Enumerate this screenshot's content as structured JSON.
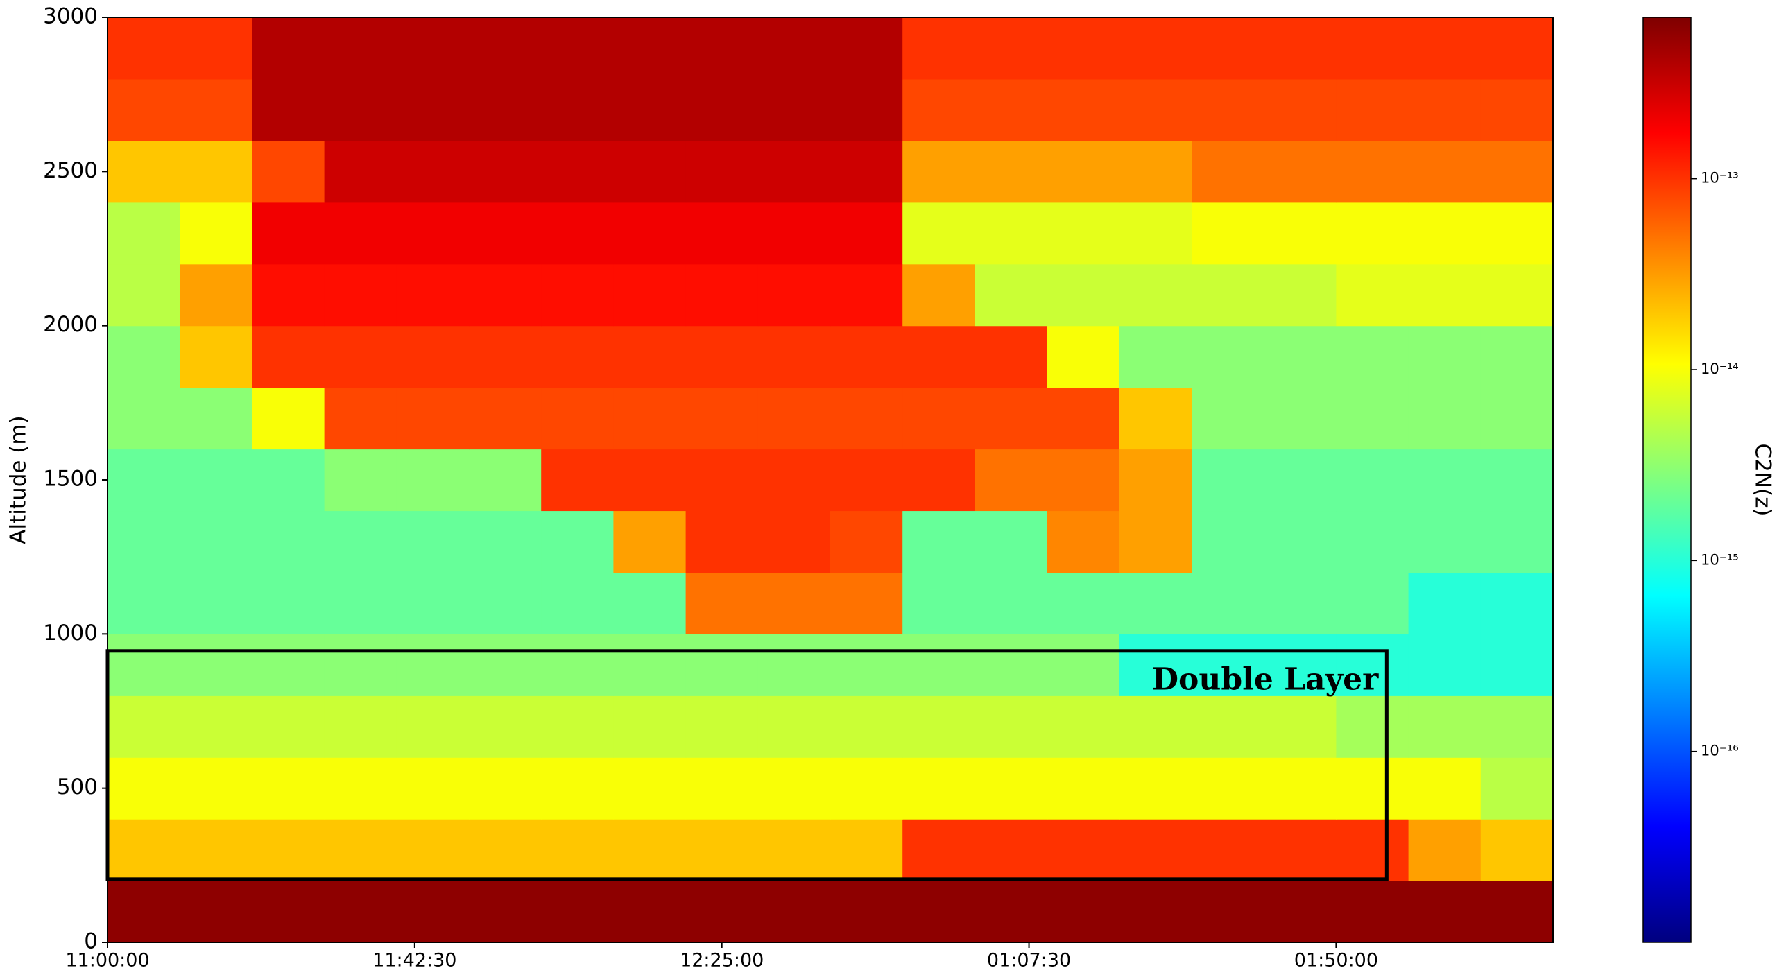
{
  "chart_data": {
    "type": "heatmap",
    "ylabel": "Altitude (m)",
    "colorbar_label": "C2N(z)",
    "color_scale": "jet",
    "color_log": true,
    "clim": [
      1e-17,
      7e-13
    ],
    "cticks": [
      {
        "value": 1e-13,
        "label": "10⁻¹³"
      },
      {
        "value": 1e-14,
        "label": "10⁻¹⁴"
      },
      {
        "value": 1e-15,
        "label": "10⁻¹⁵"
      },
      {
        "value": 1e-16,
        "label": "10⁻¹⁶"
      }
    ],
    "xlim": [
      0,
      200
    ],
    "xticks": [
      {
        "value": 0,
        "label": "11:00:00"
      },
      {
        "value": 42.5,
        "label": "11:42:30"
      },
      {
        "value": 85,
        "label": "12:25:00"
      },
      {
        "value": 127.5,
        "label": "01:07:30"
      },
      {
        "value": 170,
        "label": "01:50:00"
      }
    ],
    "ylim": [
      0,
      3000
    ],
    "yticks": [
      0,
      500,
      1000,
      1500,
      2000,
      2500,
      3000
    ],
    "x": [
      5,
      15,
      25,
      35,
      45,
      55,
      65,
      75,
      85,
      95,
      105,
      115,
      125,
      135,
      145,
      155,
      165,
      175,
      185,
      195
    ],
    "y": [
      100,
      300,
      500,
      700,
      900,
      1100,
      1300,
      1500,
      1700,
      1900,
      2100,
      2300,
      2500,
      2700,
      2900
    ],
    "z": [
      [
        6e-13,
        6e-13,
        6e-13,
        6e-13,
        6e-13,
        6e-13,
        6e-13,
        6e-13,
        6e-13,
        6e-13,
        6e-13,
        6e-13,
        6e-13,
        6e-13,
        6e-13,
        6e-13,
        6e-13,
        6e-13,
        6e-13,
        6e-13
      ],
      [
        2e-14,
        2e-14,
        2e-14,
        2e-14,
        2e-14,
        2e-14,
        2e-14,
        2e-14,
        2e-14,
        2e-14,
        2e-14,
        1e-13,
        1e-13,
        1e-13,
        1e-13,
        1e-13,
        1e-13,
        1e-13,
        3e-14,
        2e-14
      ],
      [
        1e-14,
        1e-14,
        1e-14,
        1e-14,
        1e-14,
        1e-14,
        1e-14,
        1e-14,
        1e-14,
        1e-14,
        1e-14,
        1e-14,
        1e-14,
        1e-14,
        1e-14,
        1e-14,
        1e-14,
        1e-14,
        1e-14,
        5e-15
      ],
      [
        6e-15,
        6e-15,
        6e-15,
        6e-15,
        6e-15,
        6e-15,
        6e-15,
        6e-15,
        6e-15,
        6e-15,
        6e-15,
        6e-15,
        6e-15,
        6e-15,
        6e-15,
        6e-15,
        6e-15,
        4e-15,
        4e-15,
        4e-15
      ],
      [
        3e-15,
        3e-15,
        3e-15,
        3e-15,
        3e-15,
        3e-15,
        3e-15,
        3e-15,
        3e-15,
        3e-15,
        3e-15,
        3e-15,
        3e-15,
        3e-15,
        1e-15,
        1e-15,
        1e-15,
        1e-15,
        1e-15,
        1e-15
      ],
      [
        2e-15,
        2e-15,
        2e-15,
        2e-15,
        2e-15,
        2e-15,
        2e-15,
        2e-15,
        5e-14,
        5e-14,
        5e-14,
        2e-15,
        2e-15,
        2e-15,
        2e-15,
        2e-15,
        2e-15,
        2e-15,
        1e-15,
        1e-15
      ],
      [
        2e-15,
        2e-15,
        2e-15,
        2e-15,
        2e-15,
        2e-15,
        2e-15,
        3e-14,
        1e-13,
        1e-13,
        8e-14,
        2e-15,
        2e-15,
        4e-14,
        3e-14,
        2e-15,
        2e-15,
        2e-15,
        2e-15,
        2e-15
      ],
      [
        2e-15,
        2e-15,
        2e-15,
        3e-15,
        3e-15,
        3e-15,
        1e-13,
        1e-13,
        1e-13,
        1e-13,
        1e-13,
        1e-13,
        5e-14,
        5e-14,
        3e-14,
        2e-15,
        2e-15,
        2e-15,
        2e-15,
        2e-15
      ],
      [
        3e-15,
        3e-15,
        1e-14,
        8e-14,
        8e-14,
        8e-14,
        8e-14,
        8e-14,
        8e-14,
        8e-14,
        8e-14,
        8e-14,
        8e-14,
        8e-14,
        2e-14,
        3e-15,
        3e-15,
        3e-15,
        3e-15,
        3e-15
      ],
      [
        3e-15,
        2e-14,
        1e-13,
        1e-13,
        1e-13,
        1e-13,
        1e-13,
        1e-13,
        1e-13,
        1e-13,
        1e-13,
        1e-13,
        1e-13,
        1e-14,
        3e-15,
        3e-15,
        3e-15,
        3e-15,
        3e-15,
        3e-15
      ],
      [
        5e-15,
        3e-14,
        1.5e-13,
        1.5e-13,
        1.5e-13,
        1.5e-13,
        1.5e-13,
        1.5e-13,
        1.5e-13,
        1.5e-13,
        1.5e-13,
        3e-14,
        6e-15,
        6e-15,
        6e-15,
        6e-15,
        6e-15,
        8e-15,
        8e-15,
        8e-15
      ],
      [
        5e-15,
        1e-14,
        2e-13,
        2e-13,
        2e-13,
        2e-13,
        2e-13,
        2e-13,
        2e-13,
        2e-13,
        2e-13,
        8e-15,
        8e-15,
        8e-15,
        8e-15,
        1e-14,
        1e-14,
        1e-14,
        1e-14,
        1e-14
      ],
      [
        2e-14,
        2e-14,
        8e-14,
        3e-13,
        3e-13,
        3e-13,
        3e-13,
        3e-13,
        3e-13,
        3e-13,
        3e-13,
        3e-14,
        3e-14,
        3e-14,
        3e-14,
        5e-14,
        5e-14,
        5e-14,
        5e-14,
        5e-14
      ],
      [
        8e-14,
        8e-14,
        4e-13,
        4e-13,
        4e-13,
        4e-13,
        4e-13,
        4e-13,
        4e-13,
        4e-13,
        4e-13,
        8e-14,
        8e-14,
        8e-14,
        8e-14,
        8e-14,
        8e-14,
        8e-14,
        8e-14,
        8e-14
      ],
      [
        1e-13,
        1e-13,
        4e-13,
        4e-13,
        4e-13,
        4e-13,
        4e-13,
        4e-13,
        4e-13,
        4e-13,
        4e-13,
        1e-13,
        1e-13,
        1e-13,
        1e-13,
        1e-13,
        1e-13,
        1e-13,
        1e-13,
        1e-13
      ]
    ],
    "annotations": [
      {
        "text": "Double Layer",
        "x": [
          0,
          177
        ],
        "y": [
          205,
          945
        ]
      }
    ]
  }
}
